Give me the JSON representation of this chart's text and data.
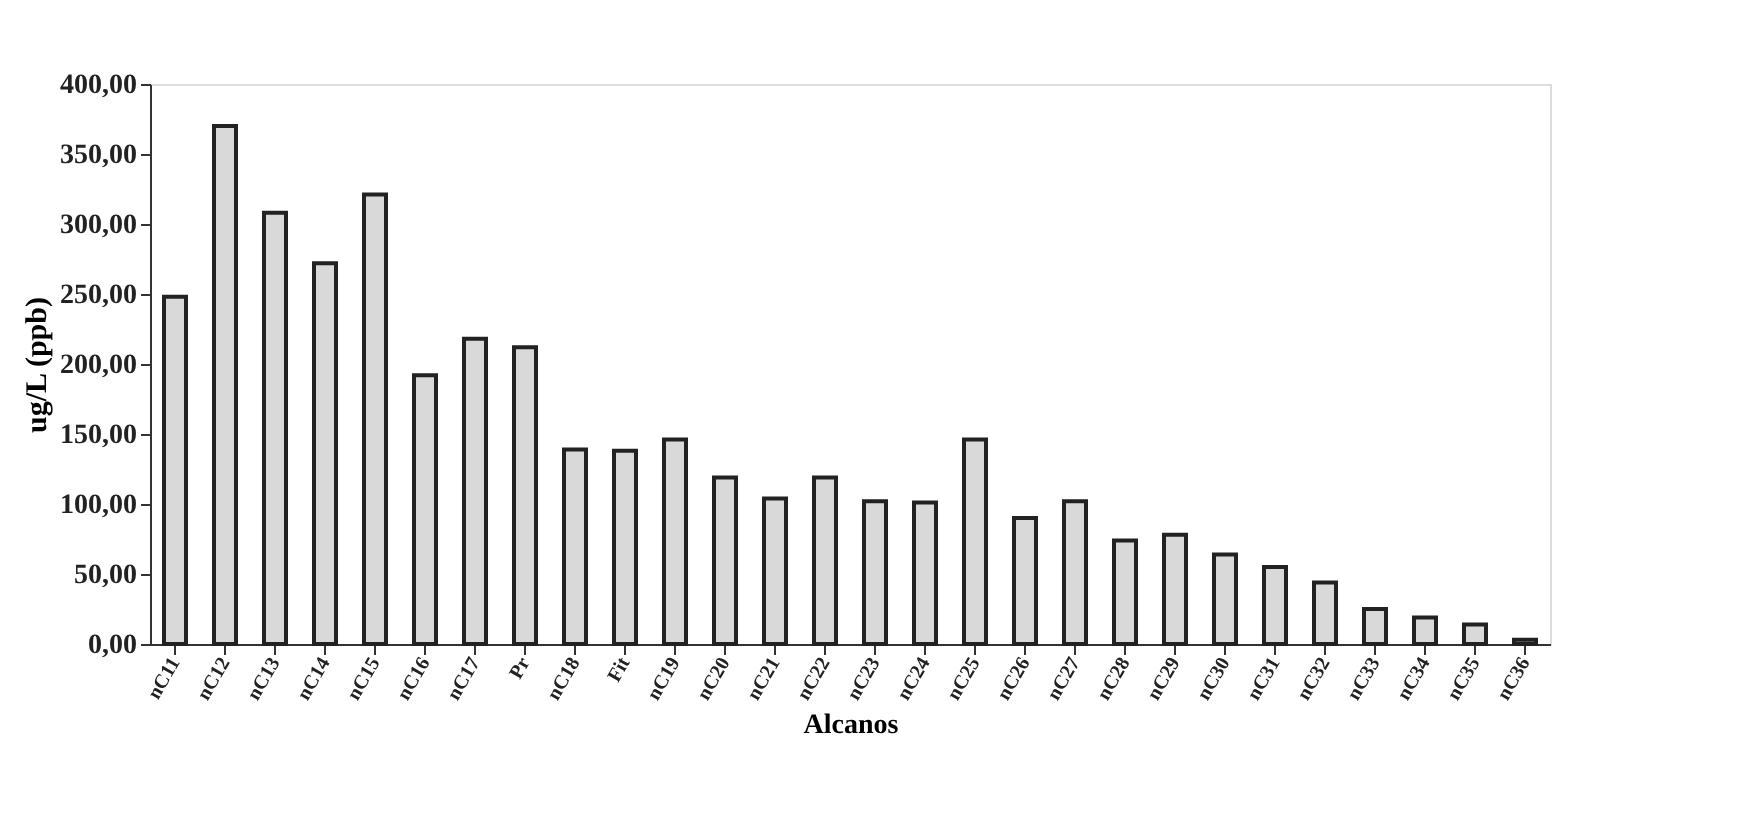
{
  "chart_data": {
    "type": "bar",
    "xlabel": "Alcanos",
    "ylabel": "ug/L (ppb)",
    "categories": [
      "nC11",
      "nC12",
      "nC13",
      "nC14",
      "nC15",
      "nC16",
      "nC17",
      "Pr",
      "nC18",
      "Fit",
      "nC19",
      "nC20",
      "nC21",
      "nC22",
      "nC23",
      "nC24",
      "nC25",
      "nC26",
      "nC27",
      "nC28",
      "nC29",
      "nC30",
      "nC31",
      "nC32",
      "nC33",
      "nC34",
      "nC35",
      "nC36"
    ],
    "values": [
      248,
      370,
      308,
      272,
      321,
      192,
      218,
      212,
      139,
      138,
      146,
      119,
      104,
      119,
      102,
      101,
      146,
      90,
      102,
      74,
      78,
      64,
      55,
      44,
      25,
      19,
      14,
      3
    ],
    "color": "#d9d9d9",
    "ylim": [
      0,
      400
    ],
    "yticks": [
      {
        "value": 0,
        "label": "0,00"
      },
      {
        "value": 50,
        "label": "50,00"
      },
      {
        "value": 100,
        "label": "100,00"
      },
      {
        "value": 150,
        "label": "150,00"
      },
      {
        "value": 200,
        "label": "200,00"
      },
      {
        "value": 250,
        "label": "250,00"
      },
      {
        "value": 300,
        "label": "300,00"
      },
      {
        "value": 350,
        "label": "350,00"
      },
      {
        "value": 400,
        "label": "400,00"
      }
    ],
    "grid": false
  }
}
